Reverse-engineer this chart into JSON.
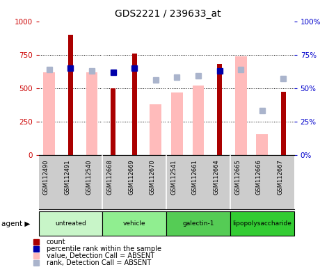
{
  "title": "GDS2221 / 239633_at",
  "samples": [
    "GSM112490",
    "GSM112491",
    "GSM112540",
    "GSM112668",
    "GSM112669",
    "GSM112670",
    "GSM112541",
    "GSM112661",
    "GSM112664",
    "GSM112665",
    "GSM112666",
    "GSM112667"
  ],
  "group_spans": [
    {
      "start": 0,
      "end": 2,
      "label": "untreated",
      "color": "#c8f5c8"
    },
    {
      "start": 3,
      "end": 5,
      "label": "vehicle",
      "color": "#90ee90"
    },
    {
      "start": 6,
      "end": 8,
      "label": "galectin-1",
      "color": "#55cc55"
    },
    {
      "start": 9,
      "end": 11,
      "label": "lipopolysaccharide",
      "color": "#33cc33"
    }
  ],
  "count_values": [
    null,
    900,
    null,
    500,
    760,
    null,
    null,
    null,
    680,
    null,
    null,
    470
  ],
  "count_color": "#aa0000",
  "pct_rank_values": [
    null,
    650,
    null,
    620,
    650,
    null,
    null,
    null,
    630,
    null,
    null,
    null
  ],
  "pct_rank_color": "#0000aa",
  "absent_value_values": [
    620,
    null,
    620,
    null,
    null,
    380,
    465,
    520,
    null,
    740,
    155,
    null
  ],
  "absent_value_color": "#ffbbbb",
  "absent_rank_values": [
    640,
    null,
    630,
    null,
    null,
    560,
    580,
    590,
    null,
    640,
    330,
    570
  ],
  "absent_rank_color": "#aab4cc",
  "ylim": [
    0,
    1000
  ],
  "yticks": [
    0,
    250,
    500,
    750,
    1000
  ],
  "ytick_labels_left": [
    "0",
    "250",
    "500",
    "750",
    "1000"
  ],
  "ytick_labels_right": [
    "0%",
    "25%",
    "50%",
    "75%",
    "100%"
  ],
  "ylabel_left_color": "#cc0000",
  "ylabel_right_color": "#0000cc",
  "background_color": "#ffffff",
  "grid_color": "#000000",
  "xticklabel_bg": "#cccccc",
  "group_boundaries": [
    2.5,
    5.5,
    8.5
  ]
}
